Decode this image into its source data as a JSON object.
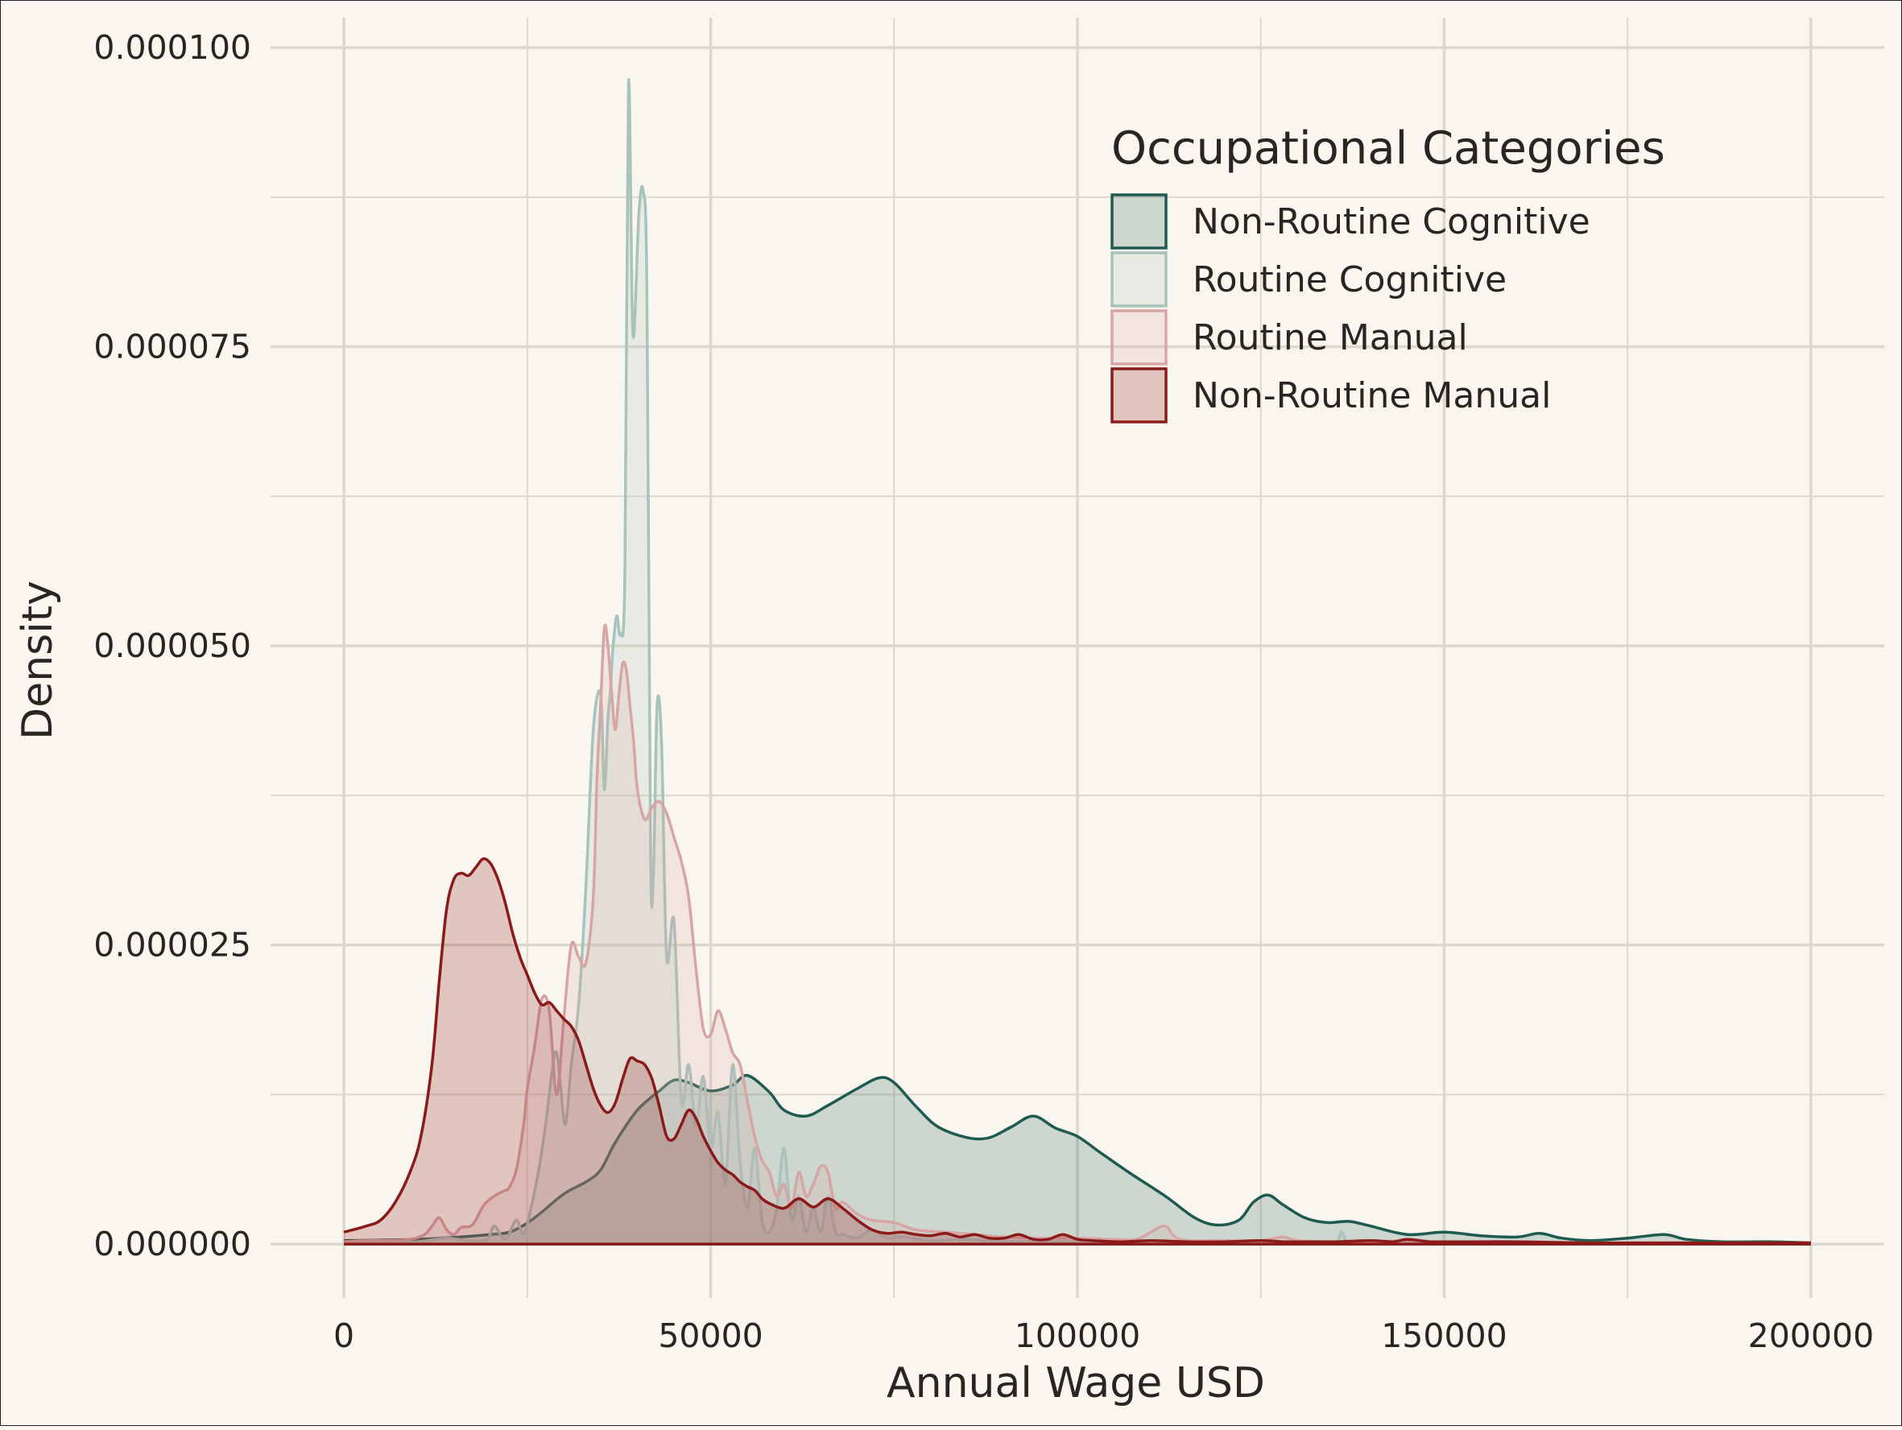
{
  "chart_data": {
    "type": "area",
    "title": "",
    "xlabel": "Annual Wage USD",
    "ylabel": "Density",
    "xlim": [
      -10000,
      210000
    ],
    "ylim": [
      -4.5e-06,
      0.0001025
    ],
    "x_ticks": [
      0,
      50000,
      100000,
      150000,
      200000
    ],
    "x_tick_labels": [
      "0",
      "50000",
      "100000",
      "150000",
      "200000"
    ],
    "y_ticks": [
      0,
      2.5e-05,
      5e-05,
      7.5e-05,
      0.0001
    ],
    "y_tick_labels": [
      "0.000000",
      "0.000025",
      "0.000050",
      "0.000075",
      "0.000100"
    ],
    "grid": true,
    "legend": {
      "title": "Occupational Categories",
      "placement": "top-right",
      "entries": [
        "Non-Routine Cognitive",
        "Routine Cognitive",
        "Routine Manual",
        "Non-Routine Manual"
      ]
    },
    "colors": {
      "background": "#f9f6ef",
      "grid": "#dcd8cc",
      "text": "#2b2420"
    },
    "series": [
      {
        "name": "Non-Routine Cognitive",
        "stroke": "#1f5a50",
        "fill": "#1f5a50",
        "fill_opacity": 0.2,
        "x": [
          0,
          10000,
          20000,
          23000,
          26000,
          30000,
          33000,
          35000,
          37000,
          40000,
          43000,
          45000,
          47000,
          50000,
          53000,
          55000,
          58000,
          60000,
          63000,
          66000,
          70000,
          73000,
          75000,
          78000,
          81000,
          85000,
          88000,
          91000,
          94000,
          97000,
          100000,
          103000,
          107000,
          112000,
          116000,
          119000,
          122000,
          124000,
          126000,
          128000,
          131000,
          134000,
          137000,
          140000,
          145000,
          150000,
          155000,
          160000,
          163000,
          166000,
          170000,
          175000,
          180000,
          183000,
          188000,
          195000,
          200000
        ],
        "y": [
          3e-07,
          4e-07,
          8e-07,
          1.1e-06,
          2.2e-06,
          4.2e-06,
          5.2e-06,
          6.2e-06,
          8.5e-06,
          1.12e-05,
          1.28e-05,
          1.37e-05,
          1.35e-05,
          1.28e-05,
          1.33e-05,
          1.41e-05,
          1.27e-05,
          1.12e-05,
          1.07e-05,
          1.16e-05,
          1.3e-05,
          1.39e-05,
          1.35e-05,
          1.15e-05,
          9.8e-06,
          8.9e-06,
          8.9e-06,
          9.8e-06,
          1.07e-05,
          9.7e-06,
          9e-06,
          7.7e-06,
          6e-06,
          4e-06,
          2.2e-06,
          1.6e-06,
          2e-06,
          3.5e-06,
          4.1e-06,
          3.3e-06,
          2.2e-06,
          1.8e-06,
          1.9e-06,
          1.5e-06,
          8e-07,
          1e-06,
          7e-07,
          6e-07,
          9e-07,
          5e-07,
          3e-07,
          5e-07,
          8e-07,
          4e-07,
          2e-07,
          2e-07,
          1e-07
        ]
      },
      {
        "name": "Routine Cognitive",
        "stroke": "#a8c2bc",
        "fill": "#a8c2bc",
        "fill_opacity": 0.22,
        "x": [
          0,
          5000,
          10000,
          14000,
          17000,
          19500,
          20500,
          22000,
          23500,
          24500,
          25500,
          26500,
          27500,
          28500,
          29000,
          29500,
          30200,
          31000,
          32000,
          33000,
          34000,
          35000,
          35500,
          36000,
          36300,
          36700,
          37200,
          37700,
          38300,
          38800,
          39400,
          40200,
          40800,
          41300,
          41800,
          42200,
          42700,
          43300,
          44000,
          45000,
          46000,
          47000,
          48000,
          49000,
          50000,
          51000,
          52000,
          53000,
          54000,
          55000,
          56000,
          57000,
          58000,
          59000,
          60000,
          61000,
          62000,
          63000,
          64000,
          65000,
          66000,
          67000,
          68000,
          70000,
          72000,
          74000,
          76000,
          80000,
          85000,
          90000,
          100000,
          110000,
          120000,
          130000,
          135000,
          136000,
          137000,
          140000,
          150000,
          160000,
          170000,
          180000,
          190000,
          200000
        ],
        "y": [
          2e-07,
          1e-07,
          2e-07,
          5e-07,
          3e-07,
          4e-07,
          1.5e-06,
          4e-07,
          2e-06,
          8e-07,
          3e-06,
          6e-06,
          1e-05,
          1.5e-05,
          1.6e-05,
          1.35e-05,
          1e-05,
          1.5e-05,
          2e-05,
          3e-05,
          4.3e-05,
          4.6e-05,
          3.8e-05,
          4.4e-05,
          4.6e-05,
          5e-05,
          5.25e-05,
          5.1e-05,
          5.6e-05,
          9.7e-05,
          7.6e-05,
          8.6e-05,
          8.8e-05,
          8e-05,
          3.3e-05,
          3.1e-05,
          4.5e-05,
          4.2e-05,
          2.4e-05,
          2.7e-05,
          1.2e-05,
          1.5e-05,
          1e-05,
          1.4e-05,
          8e-06,
          1.1e-05,
          5e-06,
          1.5e-05,
          7e-06,
          3e-06,
          8e-06,
          2e-06,
          1e-06,
          3e-06,
          8e-06,
          2e-06,
          4e-06,
          1e-06,
          3e-06,
          1e-06,
          4e-06,
          1e-06,
          8e-07,
          5e-07,
          1.2e-06,
          5e-07,
          6e-07,
          3e-07,
          4e-07,
          2e-07,
          2e-07,
          1e-07,
          1e-07,
          1e-07,
          1e-07,
          1e-06,
          1e-07,
          1e-07,
          1e-07,
          0.0,
          0.0,
          0.0,
          0.0,
          0.0
        ]
      },
      {
        "name": "Routine Manual",
        "stroke": "#d8a5a5",
        "fill": "#d8a5a5",
        "fill_opacity": 0.2,
        "x": [
          0,
          3000,
          6000,
          9000,
          11000,
          12000,
          13000,
          14000,
          15000,
          16000,
          17500,
          19000,
          20000,
          21000,
          22000,
          22500,
          23500,
          24500,
          25000,
          26000,
          27000,
          28000,
          29000,
          30000,
          31000,
          32000,
          33000,
          34000,
          34500,
          35000,
          35500,
          36000,
          36500,
          37000,
          37500,
          38000,
          38500,
          39000,
          39500,
          40000,
          41000,
          42000,
          43000,
          44000,
          45000,
          46000,
          47000,
          48000,
          49000,
          50000,
          51000,
          52000,
          53000,
          54000,
          55000,
          56000,
          57000,
          58000,
          59000,
          60000,
          61000,
          62000,
          63000,
          64000,
          65000,
          66000,
          67000,
          68000,
          70000,
          72000,
          75000,
          78000,
          82000,
          86000,
          90000,
          95000,
          100000,
          105000,
          108000,
          110000,
          112000,
          114000,
          120000,
          125000,
          128000,
          130000,
          135000,
          140000,
          145000,
          150000,
          160000,
          170000,
          180000,
          190000,
          200000
        ],
        "y": [
          2e-07,
          3e-07,
          3e-07,
          4e-07,
          8e-07,
          1.5e-06,
          2.2e-06,
          1.2e-06,
          8e-07,
          1.4e-06,
          1.6e-06,
          3.2e-06,
          3.8e-06,
          4.2e-06,
          4.5e-06,
          4.7e-06,
          6.2e-06,
          1e-05,
          1.3e-05,
          1.65e-05,
          2.05e-05,
          1.95e-05,
          1.25e-05,
          1.9e-05,
          2.5e-05,
          2.4e-05,
          2.35e-05,
          2.9e-05,
          3.9e-05,
          4.5e-05,
          5.15e-05,
          5e-05,
          4.6e-05,
          4.3e-05,
          4.6e-05,
          4.85e-05,
          4.8e-05,
          4.5e-05,
          4.2e-05,
          3.8e-05,
          3.55e-05,
          3.65e-05,
          3.7e-05,
          3.6e-05,
          3.4e-05,
          3.2e-05,
          2.9e-05,
          2.3e-05,
          1.8e-05,
          1.75e-05,
          1.95e-05,
          1.8e-05,
          1.6e-05,
          1.5e-05,
          1.2e-05,
          9e-06,
          7e-06,
          6e-06,
          4e-06,
          5e-06,
          3e-06,
          6e-06,
          4e-06,
          5e-06,
          6.5e-06,
          6e-06,
          3e-06,
          3.5e-06,
          2.5e-06,
          2e-06,
          1.8e-06,
          1.2e-06,
          1e-06,
          8e-07,
          6e-07,
          5e-07,
          5e-07,
          4e-07,
          4e-07,
          1e-06,
          1.5e-06,
          4e-07,
          3e-07,
          3e-07,
          6e-07,
          3e-07,
          2e-07,
          2e-07,
          3e-07,
          2e-07,
          1e-07,
          1e-07,
          1e-07,
          1e-07,
          1e-07
        ]
      },
      {
        "name": "Non-Routine Manual",
        "stroke": "#8b1a1a",
        "fill": "#8b1a1a",
        "fill_opacity": 0.22,
        "x": [
          0,
          3000,
          5000,
          7000,
          9000,
          10500,
          12000,
          13000,
          14000,
          15000,
          16000,
          17000,
          18000,
          19000,
          20000,
          21000,
          22000,
          23000,
          24000,
          25000,
          26000,
          27000,
          28000,
          29000,
          30000,
          31000,
          32000,
          33000,
          34000,
          35000,
          36000,
          37000,
          38000,
          39000,
          40000,
          41000,
          42000,
          43000,
          44000,
          45000,
          46000,
          47000,
          48000,
          49000,
          50000,
          51000,
          52000,
          53000,
          54000,
          55000,
          56000,
          57000,
          58000,
          60000,
          62000,
          64000,
          66000,
          68000,
          70000,
          72000,
          74000,
          76000,
          78000,
          80000,
          82000,
          84000,
          86000,
          88000,
          90000,
          92000,
          94000,
          96000,
          98000,
          100000,
          102000,
          106000,
          110000,
          115000,
          120000,
          125000,
          128000,
          130000,
          135000,
          140000,
          143000,
          145000,
          148000,
          150000,
          155000,
          160000,
          170000,
          180000,
          190000,
          200000
        ],
        "y": [
          1e-06,
          1.5e-06,
          2e-06,
          3.5e-06,
          6e-06,
          9e-06,
          1.5e-05,
          2.2e-05,
          2.8e-05,
          3.05e-05,
          3.1e-05,
          3.08e-05,
          3.15e-05,
          3.22e-05,
          3.18e-05,
          3.05e-05,
          2.85e-05,
          2.6e-05,
          2.4e-05,
          2.25e-05,
          2.1e-05,
          2e-05,
          2.02e-05,
          1.95e-05,
          1.88e-05,
          1.82e-05,
          1.7e-05,
          1.5e-05,
          1.3e-05,
          1.16e-05,
          1.1e-05,
          1.18e-05,
          1.38e-05,
          1.55e-05,
          1.53e-05,
          1.5e-05,
          1.38e-05,
          1.15e-05,
          9e-06,
          8.8e-06,
          1e-05,
          1.12e-05,
          1.05e-05,
          9e-06,
          7.8e-06,
          6.8e-06,
          6.2e-06,
          5.8e-06,
          5.2e-06,
          4.8e-06,
          4.5e-06,
          3.8e-06,
          3.4e-06,
          3e-06,
          3.8e-06,
          3.1e-06,
          3.8e-06,
          3e-06,
          2e-06,
          1.2e-06,
          9e-07,
          1e-06,
          8e-07,
          7e-07,
          9e-07,
          6e-07,
          8e-07,
          5e-07,
          5e-07,
          8e-07,
          4e-07,
          4e-07,
          8e-07,
          4e-07,
          3e-07,
          2e-07,
          3e-07,
          2e-07,
          2e-07,
          3e-07,
          2e-07,
          2e-07,
          2e-07,
          3e-07,
          2e-07,
          4e-07,
          2e-07,
          2e-07,
          2e-07,
          2e-07,
          1e-07,
          1e-07,
          1e-07,
          1e-07
        ]
      }
    ]
  }
}
